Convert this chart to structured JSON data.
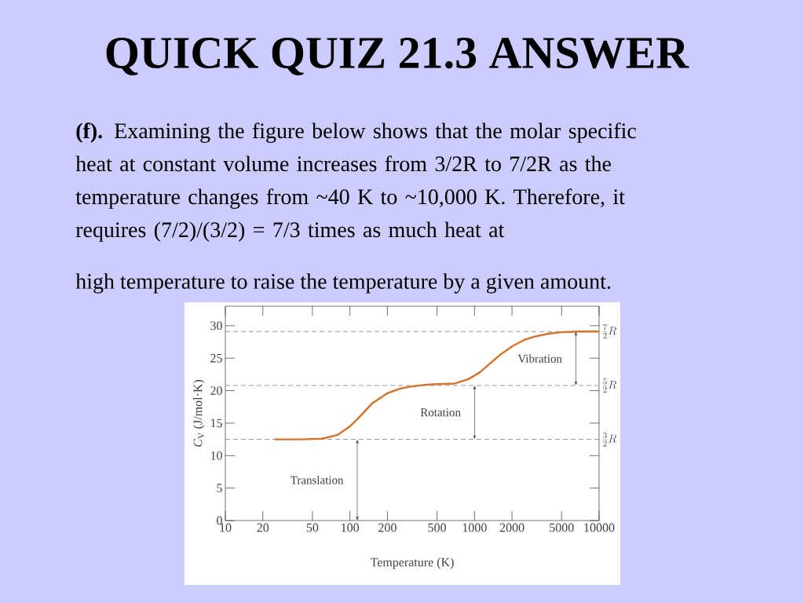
{
  "chart_data": {
    "type": "line",
    "title": "QUICK QUIZ 21.3 ANSWER",
    "subtitle": "**(f).** Examining the figure below shows that the molar specific heat at constant volume increases from 3/2R to 7/2R as the temperature changes from ~40 K to ~10,000 K. Therefore, it requires (7/2)/(3/2) = 7/3 times as much heat at",
    "xlabel": "Temperature (K)",
    "ylabel": "*C*$_{V}$ (J/mol·K)",
    "x": [
      25,
      40,
      60,
      80,
      100,
      120,
      150,
      200,
      250,
      300,
      400,
      500,
      700,
      900,
      1100,
      1300,
      1600,
      2000,
      2500,
      3000,
      4000,
      5000,
      7000,
      10000
    ],
    "values": [
      12.5,
      12.5,
      12.6,
      13.2,
      14.5,
      16,
      18,
      19.6,
      20.3,
      20.6,
      20.9,
      21,
      21.1,
      21.8,
      22.8,
      24,
      25.5,
      26.8,
      27.8,
      28.3,
      28.8,
      29,
      29.1,
      29.1
    ],
    "color": "#d4712a",
    "log": "x",
    "xlim": [
      10,
      10000
    ],
    "ylim": [
      0,
      33
    ],
    "xticks": [
      10,
      20,
      50,
      100,
      200,
      500,
      1000,
      2000,
      5000,
      10000
    ],
    "yticks": [
      0,
      5,
      10,
      15,
      20,
      25,
      30
    ],
    "ref_lines": [
      {
        "axis": "y",
        "value": 12.5,
        "label": "\\frac{3}{2}R",
        "line_style": "dashed",
        "color": "#999999"
      },
      {
        "axis": "y",
        "value": 20.8,
        "label": "\\frac{5}{2}R",
        "line_style": "dashed",
        "color": "#999999"
      },
      {
        "axis": "y",
        "value": 29.1,
        "label": "\\frac{7}{2}R",
        "line_style": "dashed",
        "color": "#999999"
      }
    ],
    "annotations": [
      "Translation",
      "Rotation",
      "Vibration",
      "high temperature to raise the temperature by a given amount."
    ]
  }
}
